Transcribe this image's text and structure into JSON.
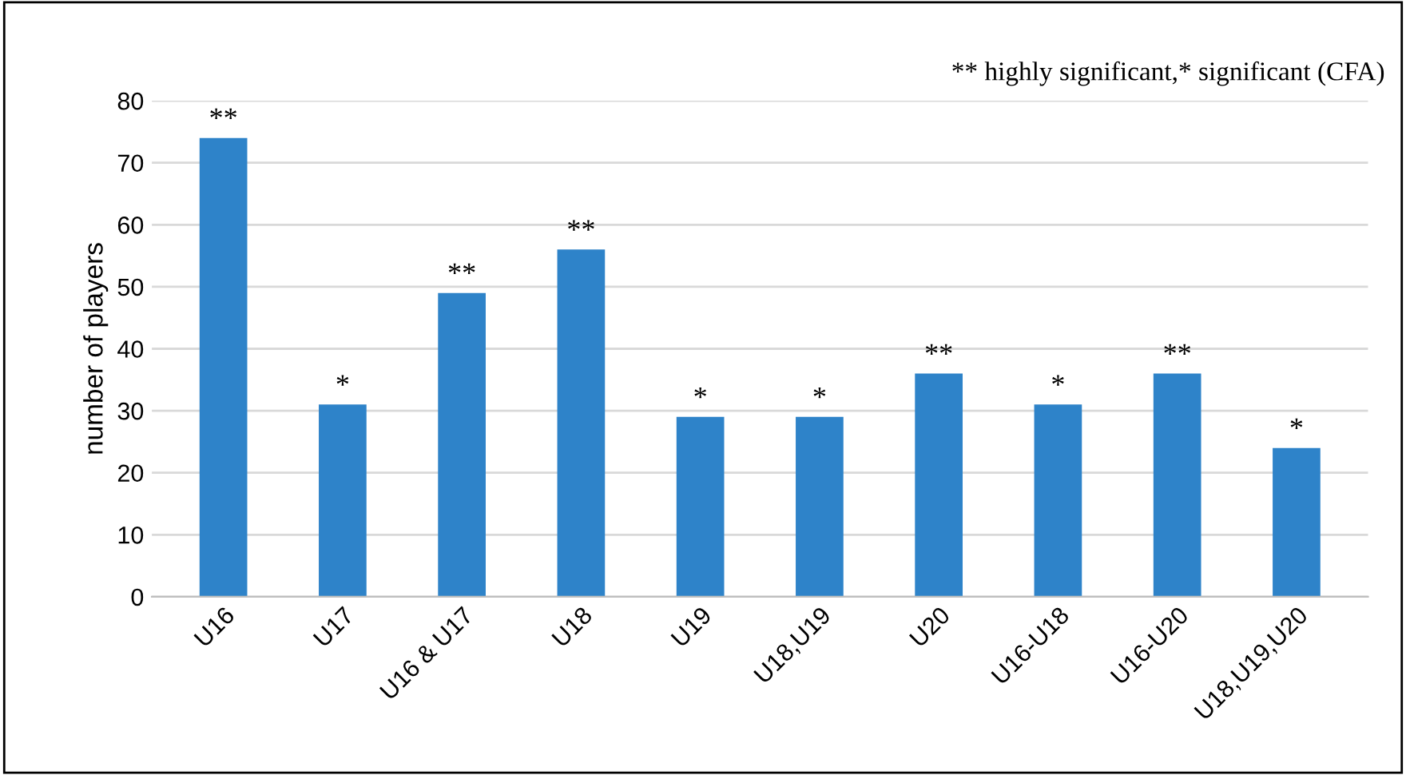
{
  "chart_data": {
    "type": "bar",
    "ylabel": "number of players",
    "categories": [
      "U16",
      "U17",
      "U16 & U17",
      "U18",
      "U19",
      "U18,U19",
      "U20",
      "U16-U18",
      "U16-U20",
      "U18,U19,U20"
    ],
    "values": [
      74,
      31,
      49,
      56,
      29,
      29,
      36,
      31,
      36,
      24
    ],
    "color": "#2e83c9",
    "ylim": [
      0,
      80
    ],
    "yticks": [
      0,
      10,
      20,
      30,
      40,
      50,
      60,
      70,
      80
    ],
    "grid": "y",
    "annotations": [
      "** highly significant,* significant (CFA)",
      {
        "text": "**",
        "x": "U16",
        "y": 74
      },
      {
        "text": "*",
        "x": "U17",
        "y": 31
      },
      {
        "text": "**",
        "x": "U16 & U17",
        "y": 49
      },
      {
        "text": "**",
        "x": "U18",
        "y": 56
      },
      {
        "text": "*",
        "x": "U19",
        "y": 29
      },
      {
        "text": "*",
        "x": "U18,U19",
        "y": 29
      },
      {
        "text": "**",
        "x": "U20",
        "y": 36
      },
      {
        "text": "*",
        "x": "U16-U18",
        "y": 31
      },
      {
        "text": "**",
        "x": "U16-U20",
        "y": 36
      },
      {
        "text": "*",
        "x": "U18,U19,U20",
        "y": 24
      }
    ]
  }
}
